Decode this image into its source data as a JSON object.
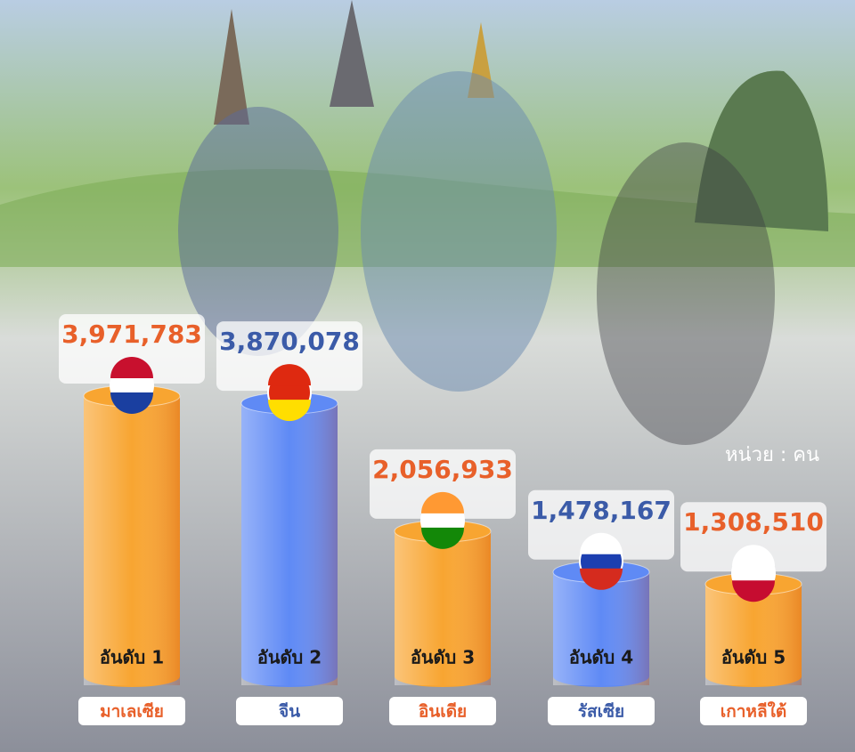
{
  "chart_data": {
    "type": "bar",
    "categories": [
      "มาเลเซีย",
      "จีน",
      "อินเดีย",
      "รัสเซีย",
      "เกาหลีใต้"
    ],
    "values": [
      3971783,
      3870078,
      2056933,
      1478167,
      1308510
    ],
    "value_labels": [
      "3,971,783",
      "3,870,078",
      "2,056,933",
      "1,478,167",
      "1,308,510"
    ],
    "rank_labels": [
      "อันดับ 1",
      "อันดับ 2",
      "อันดับ 3",
      "อันดับ 4",
      "อันดับ 5"
    ],
    "colors": [
      "#f8a531",
      "#5f8af5",
      "#f8a531",
      "#5f8af5",
      "#f8a531"
    ],
    "label_colors": [
      "#e8602a",
      "#3b5ba8",
      "#e8602a",
      "#3b5ba8",
      "#e8602a"
    ],
    "unit_label": "หน่วย : คน"
  }
}
